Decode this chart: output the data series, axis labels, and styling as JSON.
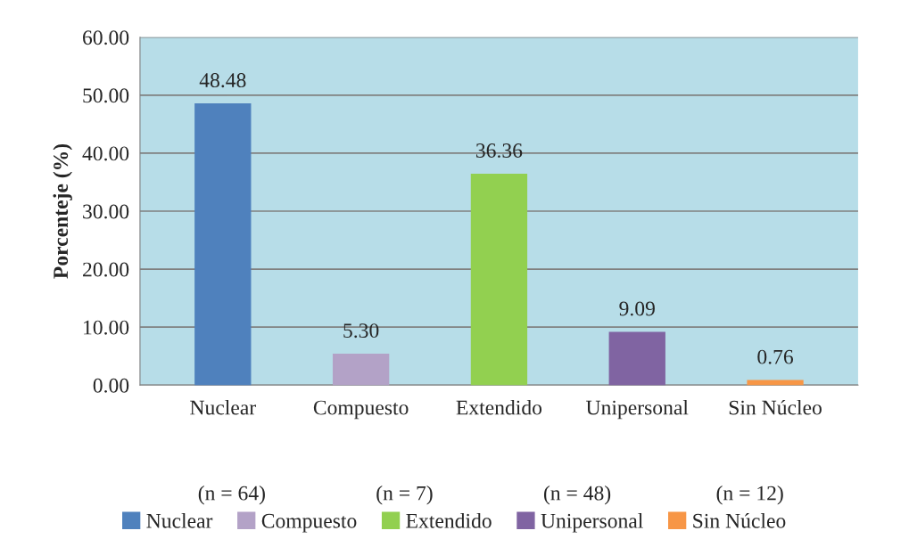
{
  "chart_data": {
    "type": "bar",
    "ylabel": "Porcenteje (%)",
    "categories": [
      "Nuclear",
      "Compuesto",
      "Extendido",
      "Unipersonal",
      "Sin Núcleo"
    ],
    "series": [
      {
        "name": "Nuclear",
        "color": "#4f81bd",
        "values": [
          48.48,
          null,
          null,
          null,
          null
        ],
        "value_labels": [
          "48.48",
          null,
          null,
          null,
          null
        ]
      },
      {
        "name": "Compuesto",
        "color": "#b3a2c7",
        "values": [
          null,
          5.3,
          null,
          null,
          null
        ],
        "value_labels": [
          null,
          "5.30",
          null,
          null,
          null
        ]
      },
      {
        "name": "Extendido",
        "color": "#92d050",
        "values": [
          null,
          null,
          36.36,
          null,
          null
        ],
        "value_labels": [
          null,
          null,
          "36.36",
          null,
          null
        ]
      },
      {
        "name": "Unipersonal",
        "color": "#8064a2",
        "values": [
          null,
          null,
          null,
          9.09,
          null
        ],
        "value_labels": [
          null,
          null,
          null,
          "9.09",
          null
        ]
      },
      {
        "name": "Sin Núcleo",
        "color": "#f79646",
        "values": [
          null,
          null,
          null,
          null,
          0.76
        ],
        "value_labels": [
          null,
          null,
          null,
          null,
          "0.76"
        ]
      }
    ],
    "ylim": [
      0,
      60
    ],
    "yticks": [
      {
        "value": 0,
        "label": "0.00"
      },
      {
        "value": 10,
        "label": "10.00"
      },
      {
        "value": 20,
        "label": "20.00"
      },
      {
        "value": 30,
        "label": "30.00"
      },
      {
        "value": 40,
        "label": "40.00"
      },
      {
        "value": 50,
        "label": "50.00"
      },
      {
        "value": 60,
        "label": "60.00"
      }
    ],
    "grid": "y",
    "legend": "bottom",
    "annotations": [
      "(n = 64)",
      "(n = 7)",
      "(n = 48)",
      "(n = 12)"
    ]
  }
}
